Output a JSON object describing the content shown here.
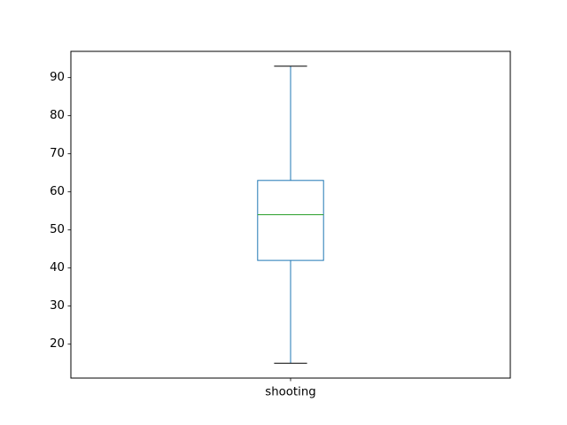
{
  "chart_data": {
    "type": "box",
    "title": "",
    "xlabel": "",
    "ylabel": "",
    "ylim": [
      11.1,
      96.9
    ],
    "yticks": [
      20,
      30,
      40,
      50,
      60,
      70,
      80,
      90
    ],
    "categories": [
      "shooting"
    ],
    "boxes": [
      {
        "name": "shooting",
        "whisker_low": 15,
        "q1": 42,
        "median": 54,
        "q3": 63,
        "whisker_high": 93
      }
    ],
    "colors": {
      "box": "#1f77b4",
      "whisker": "#1f77b4",
      "cap": "#000000",
      "median": "#2ca02c",
      "axes": "#000000"
    }
  }
}
